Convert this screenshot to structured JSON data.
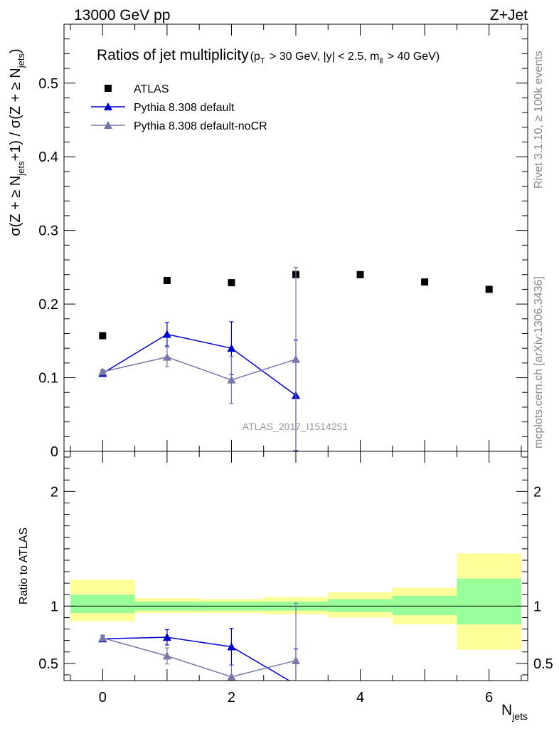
{
  "header": {
    "energy": "13000 GeV pp",
    "process": "Z+Jet",
    "rivet": "Rivet 3.1.10, ≥ 100k events",
    "mcplots": "mcplots.cern.ch [arXiv:1306.3436]",
    "analysis": "ATLAS_2017_I1514251"
  },
  "chart_data": [
    {
      "type": "scatter",
      "title": "Ratios of jet multiplicity",
      "title_cuts": "(pT > 30 GeV, |y| < 2.5, mll > 40 GeV)",
      "ylabel": "σ(Z + ≥ Njets+1) / σ(Z + ≥ Njets)",
      "xlim": [
        -0.6,
        6.6
      ],
      "ylim": [
        0,
        0.58
      ],
      "yticks": [
        0,
        0.1,
        0.2,
        0.3,
        0.4,
        0.5
      ],
      "yticklabels": [
        "0",
        "0.1",
        "0.2",
        "0.3",
        "0.4",
        "0.5"
      ],
      "legend_position": "top-left",
      "series": [
        {
          "name": "ATLAS",
          "color": "#000000",
          "marker": "square",
          "x": [
            0,
            1,
            2,
            3,
            4,
            5,
            6
          ],
          "y": [
            0.157,
            0.232,
            0.229,
            0.24,
            0.24,
            0.23,
            0.22
          ]
        },
        {
          "name": "Pythia 8.308 default",
          "color": "#0000cc",
          "marker": "triangle",
          "x": [
            0,
            1,
            2,
            3
          ],
          "y": [
            0.106,
            0.159,
            0.14,
            0.076
          ],
          "yerr_low": [
            0.004,
            0.016,
            0.036,
            0.075
          ],
          "yerr_high": [
            0.004,
            0.016,
            0.036,
            0.075
          ]
        },
        {
          "name": "Pythia 8.308 default-noCR",
          "color": "#7777aa",
          "marker": "triangle",
          "x": [
            0,
            1,
            2,
            3
          ],
          "y": [
            0.108,
            0.128,
            0.097,
            0.125
          ],
          "yerr_low": [
            0.003,
            0.013,
            0.032,
            0.125
          ],
          "yerr_high": [
            0.003,
            0.013,
            0.032,
            0.125
          ]
        }
      ]
    },
    {
      "type": "scatter",
      "ylabel": "Ratio to ATLAS",
      "xlabel": "Njets",
      "xlim": [
        -0.6,
        6.6
      ],
      "ylim": [
        0.35,
        2.35
      ],
      "xticks": [
        0,
        2,
        4,
        6
      ],
      "xticklabels": [
        "0",
        "2",
        "4",
        "6"
      ],
      "yticks": [
        0.5,
        1,
        2
      ],
      "yticklabels": [
        "0.5",
        "1",
        "2"
      ],
      "bands": {
        "x_edges": [
          -0.5,
          0.5,
          1.5,
          2.5,
          3.5,
          4.5,
          5.5,
          6.5
        ],
        "yellow_low": [
          0.87,
          0.94,
          0.94,
          0.93,
          0.9,
          0.84,
          0.62
        ],
        "yellow_high": [
          1.23,
          1.07,
          1.06,
          1.08,
          1.12,
          1.16,
          1.46
        ],
        "green_low": [
          0.94,
          0.96,
          0.96,
          0.96,
          0.95,
          0.92,
          0.84
        ],
        "green_high": [
          1.1,
          1.04,
          1.04,
          1.04,
          1.06,
          1.09,
          1.24
        ],
        "yellow_color": "#ffff99",
        "green_color": "#99ff99"
      },
      "series": [
        {
          "name": "Pythia 8.308 default",
          "color": "#0000cc",
          "x": [
            0,
            1,
            2,
            3
          ],
          "y": [
            0.715,
            0.728,
            0.645,
            0.316
          ],
          "yerr_low": [
            0.025,
            0.067,
            0.16,
            0.31
          ],
          "yerr_high": [
            0.025,
            0.067,
            0.16,
            0.31
          ]
        },
        {
          "name": "Pythia 8.308 default-noCR",
          "color": "#7777aa",
          "x": [
            0,
            1,
            2,
            3
          ],
          "y": [
            0.722,
            0.565,
            0.383,
            0.525
          ],
          "yerr_low": [
            0.025,
            0.07,
            0.1,
            0.5
          ],
          "yerr_high": [
            0.025,
            0.07,
            0.1,
            0.5
          ]
        }
      ]
    }
  ]
}
